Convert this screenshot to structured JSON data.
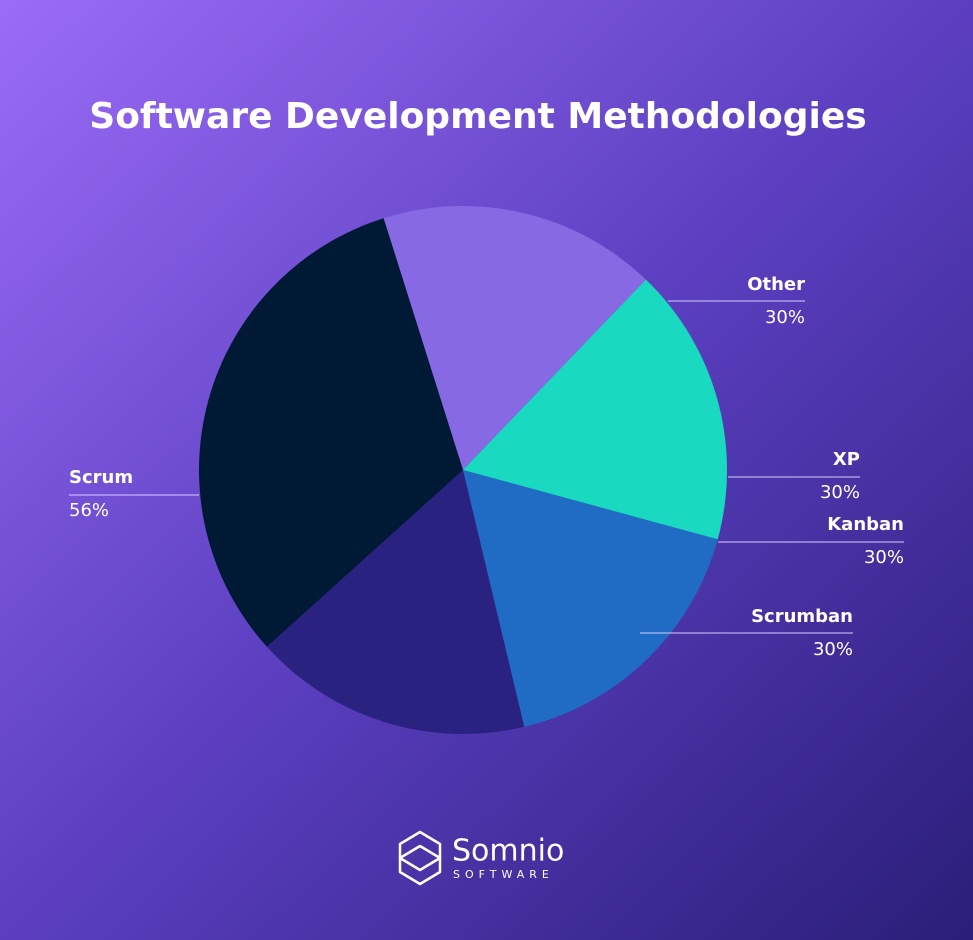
{
  "chart_data": {
    "type": "pie",
    "title": "Software Development Methodologies",
    "categories": [
      "Other",
      "XP",
      "Kanban",
      "Scrumban",
      "Scrum"
    ],
    "values": [
      30,
      30,
      30,
      30,
      56
    ],
    "value_labels": [
      "30%",
      "30%",
      "30%",
      "30%",
      "56%"
    ],
    "colors": [
      "#8769e3",
      "#19d9c0",
      "#206bc4",
      "#2a2280",
      "#001a35"
    ]
  },
  "brand": {
    "name": "Somnio",
    "tagline": "SOFTWARE"
  }
}
